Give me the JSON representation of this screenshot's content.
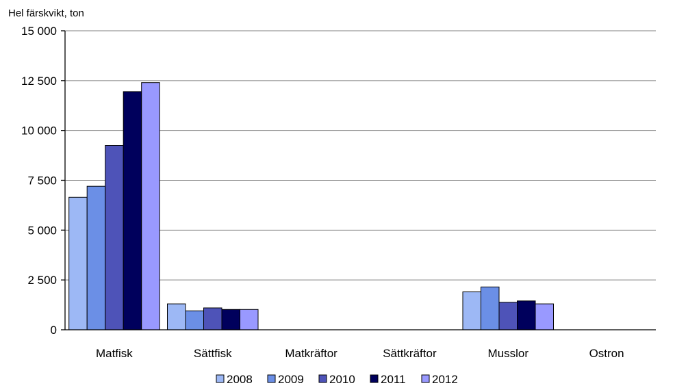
{
  "chart_data": {
    "type": "bar",
    "title": "",
    "ylabel": "Hel färskvikt, ton",
    "xlabel": "",
    "categories": [
      "Matfisk",
      "Sättfisk",
      "Matkräftor",
      "Sättkräftor",
      "Musslor",
      "Ostron"
    ],
    "ylim": [
      0,
      15000
    ],
    "yticks": [
      0,
      2500,
      5000,
      7500,
      10000,
      12500,
      15000
    ],
    "ytick_labels": [
      "0",
      "2 500",
      "5 000",
      "7 500",
      "10 000",
      "12 500",
      "15 000"
    ],
    "grid": true,
    "legend_placement": "bottom",
    "series": [
      {
        "name": "2008",
        "color": "#9DB8F5",
        "values": [
          6650,
          1300,
          0,
          0,
          1900,
          0
        ]
      },
      {
        "name": "2009",
        "color": "#6B8FE6",
        "values": [
          7200,
          950,
          0,
          0,
          2150,
          0
        ]
      },
      {
        "name": "2010",
        "color": "#4E53B8",
        "values": [
          9250,
          1100,
          0,
          0,
          1380,
          0
        ]
      },
      {
        "name": "2011",
        "color": "#00005C",
        "values": [
          11950,
          1020,
          0,
          0,
          1450,
          0
        ]
      },
      {
        "name": "2012",
        "color": "#9999FF",
        "values": [
          12400,
          1020,
          0,
          0,
          1300,
          0
        ]
      }
    ]
  }
}
